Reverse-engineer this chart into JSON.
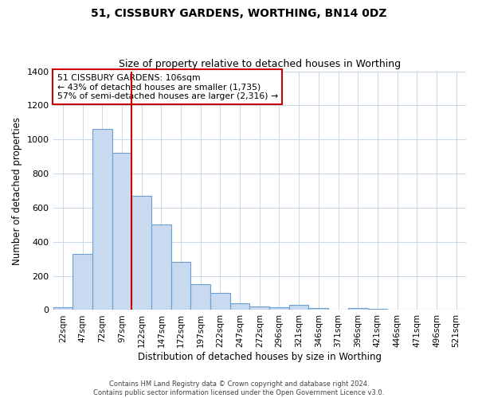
{
  "title": "51, CISSBURY GARDENS, WORTHING, BN14 0DZ",
  "subtitle": "Size of property relative to detached houses in Worthing",
  "xlabel": "Distribution of detached houses by size in Worthing",
  "ylabel": "Number of detached properties",
  "bar_labels": [
    "22sqm",
    "47sqm",
    "72sqm",
    "97sqm",
    "122sqm",
    "147sqm",
    "172sqm",
    "197sqm",
    "222sqm",
    "247sqm",
    "272sqm",
    "296sqm",
    "321sqm",
    "346sqm",
    "371sqm",
    "396sqm",
    "421sqm",
    "446sqm",
    "471sqm",
    "496sqm",
    "521sqm"
  ],
  "bar_values": [
    18,
    330,
    1060,
    920,
    670,
    500,
    280,
    150,
    100,
    40,
    20,
    15,
    30,
    10,
    0,
    10,
    5,
    0,
    0,
    0,
    0
  ],
  "bar_color": "#c9d9ef",
  "bar_edge_color": "#6b9fd4",
  "ylim": [
    0,
    1400
  ],
  "yticks": [
    0,
    200,
    400,
    600,
    800,
    1000,
    1200,
    1400
  ],
  "marker_color": "#cc0000",
  "annotation_title": "51 CISSBURY GARDENS: 106sqm",
  "annotation_line1": "← 43% of detached houses are smaller (1,735)",
  "annotation_line2": "57% of semi-detached houses are larger (2,316) →",
  "annotation_box_color": "#cc0000",
  "footer1": "Contains HM Land Registry data © Crown copyright and database right 2024.",
  "footer2": "Contains public sector information licensed under the Open Government Licence v3.0.",
  "background_color": "#ffffff",
  "grid_color": "#c8d8e8"
}
